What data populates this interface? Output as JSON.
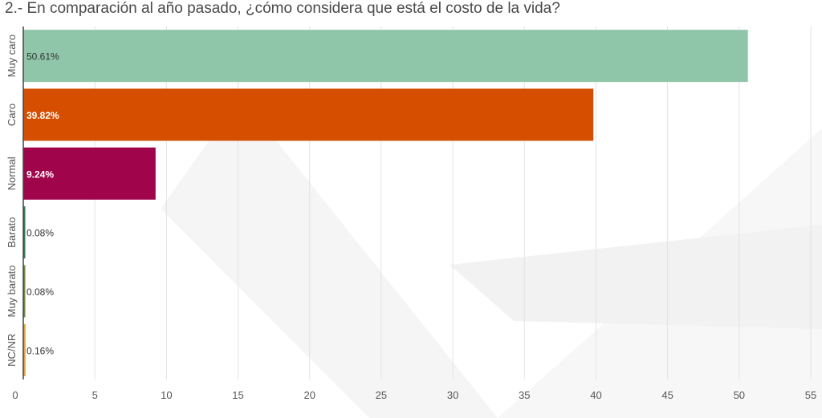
{
  "chart_data": {
    "type": "bar",
    "orientation": "horizontal",
    "title": "2.- En comparación al año pasado, ¿cómo considera que está el costo de la vida?",
    "categories": [
      "Muy caro",
      "Caro",
      "Normal",
      "Barato",
      "Muy barato",
      "NC/NR"
    ],
    "values": [
      50.61,
      39.82,
      9.24,
      0.08,
      0.08,
      0.16
    ],
    "value_labels": [
      "50.61%",
      "39.82%",
      "9.24%",
      "0.08%",
      "0.08%",
      "0.16%"
    ],
    "colors": [
      "#8fc5a9",
      "#d64f00",
      "#a0054c",
      "#2f7f52",
      "#6a8e3a",
      "#e8a33c"
    ],
    "label_colors": [
      "#333333",
      "#ffffff",
      "#ffffff",
      "#333333",
      "#333333",
      "#333333"
    ],
    "xlim": [
      0,
      55
    ],
    "xticks": [
      "0",
      "5",
      "10",
      "15",
      "20",
      "25",
      "30",
      "35",
      "40",
      "45",
      "50",
      "55"
    ],
    "grid": true
  }
}
